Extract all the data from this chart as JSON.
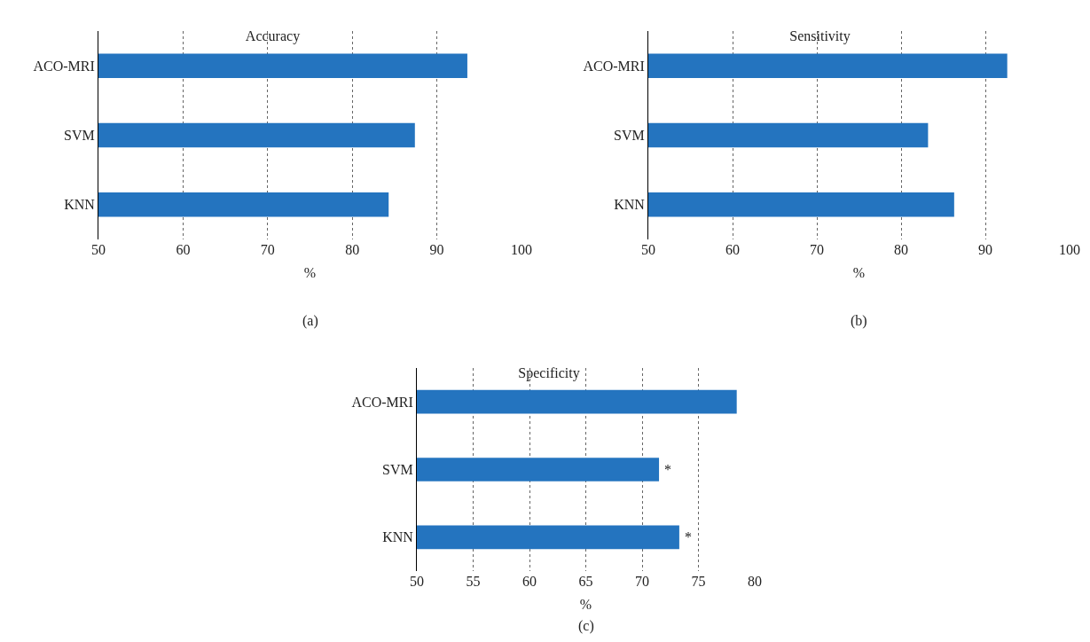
{
  "chart_data": [
    {
      "type": "bar",
      "title": "Accuracy",
      "xlabel": "%",
      "orientation": "horizontal",
      "categories": [
        "ACO-MRI",
        "SVM",
        "KNN"
      ],
      "values": [
        93.6,
        87.4,
        84.3
      ],
      "color": "#2474bf",
      "xlim": [
        50,
        100
      ],
      "xticks": [
        50,
        60,
        70,
        80,
        90,
        100
      ],
      "grid": "x",
      "annotations": [
        "(a)"
      ]
    },
    {
      "type": "bar",
      "title": "Sensitivity",
      "xlabel": "%",
      "orientation": "horizontal",
      "categories": [
        "ACO-MRI",
        "SVM",
        "KNN"
      ],
      "values": [
        92.6,
        83.2,
        86.3
      ],
      "color": "#2474bf",
      "xlim": [
        50,
        100
      ],
      "xticks": [
        50,
        60,
        70,
        80,
        90,
        100
      ],
      "grid": "x",
      "annotations": [
        "(b)"
      ]
    },
    {
      "type": "bar",
      "title": "Specificity",
      "xlabel": "%",
      "orientation": "horizontal",
      "categories": [
        "ACO-MRI",
        "SVM",
        "KNN"
      ],
      "values": [
        78.4,
        71.5,
        73.3
      ],
      "color": "#2474bf",
      "xlim": [
        50,
        80
      ],
      "xticks": [
        50,
        55,
        60,
        65,
        70,
        75,
        80
      ],
      "grid": "x",
      "annotations": [
        "(c)",
        {
          "text": "*",
          "x": 71.5,
          "y": "SVM"
        },
        {
          "text": "*",
          "x": 73.3,
          "y": "KNN"
        }
      ]
    }
  ]
}
